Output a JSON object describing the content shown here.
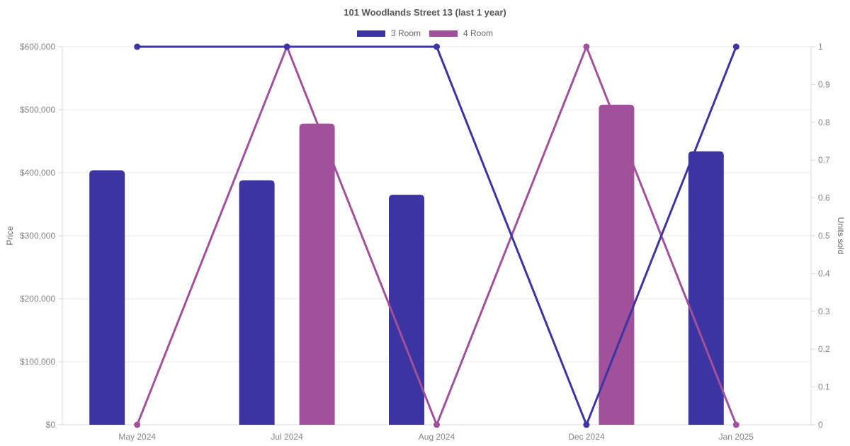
{
  "chart_data": {
    "type": "bar+line",
    "title": "101 Woodlands Street 13 (last 1 year)",
    "categories": [
      "May 2024",
      "Jul 2024",
      "Aug 2024",
      "Dec 2024",
      "Jan 2025"
    ],
    "bar_series": [
      {
        "name": "3 Room",
        "color": "#3b34a1",
        "axis": "left",
        "values": [
          404000,
          388000,
          365000,
          null,
          434000
        ]
      },
      {
        "name": "4 Room",
        "color": "#a1509b",
        "axis": "left",
        "values": [
          null,
          478000,
          null,
          508000,
          null
        ]
      }
    ],
    "line_series": [
      {
        "name": "3 Room",
        "color": "#3b34a1",
        "axis": "right",
        "values": [
          1,
          1,
          1,
          0,
          1
        ]
      },
      {
        "name": "4 Room",
        "color": "#a1509b",
        "axis": "right",
        "values": [
          0,
          1,
          0,
          1,
          0
        ]
      }
    ],
    "left_axis": {
      "label": "Price",
      "min": 0,
      "max": 600000,
      "ticks": [
        "$0",
        "$100,000",
        "$200,000",
        "$300,000",
        "$400,000",
        "$500,000",
        "$600,000"
      ]
    },
    "right_axis": {
      "label": "Units sold",
      "min": 0,
      "max": 1,
      "ticks": [
        "0",
        "0.1",
        "0.2",
        "0.3",
        "0.4",
        "0.5",
        "0.6",
        "0.7",
        "0.8",
        "0.9",
        "1"
      ]
    },
    "legend": [
      {
        "label": "3 Room",
        "color": "#3b34a1"
      },
      {
        "label": "4 Room",
        "color": "#a1509b"
      }
    ],
    "legend_position": "top",
    "grid": true,
    "colors": {
      "grid_line": "#e9e9e9",
      "axis_border": "#d9d9d9",
      "tick_text": "#858585",
      "title_text": "#555555",
      "legend_text": "#666666"
    }
  }
}
